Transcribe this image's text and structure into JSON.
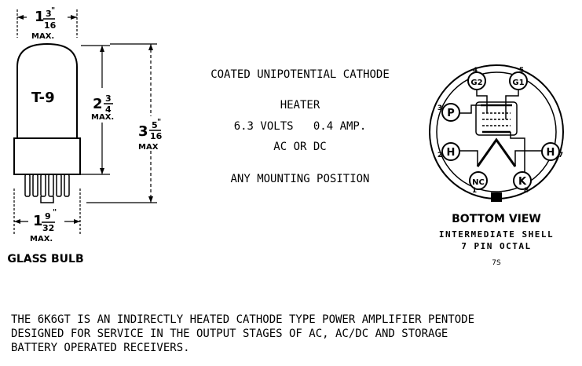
{
  "tube": {
    "bulb_label": "T-9",
    "bulb_type_caption": "GLASS BULB",
    "dims": {
      "top_width": {
        "whole": "1",
        "num": "3",
        "den": "16",
        "suffix": "\"",
        "qualifier": "MAX."
      },
      "bulb_height": {
        "whole": "2",
        "num": "3",
        "den": "4",
        "suffix": "",
        "qualifier": "MAX."
      },
      "overall_height": {
        "whole": "3",
        "num": "5",
        "den": "16",
        "suffix": "\"",
        "qualifier": "MAX"
      },
      "base_width": {
        "whole": "1",
        "num": "9",
        "den": "32",
        "suffix": "\"",
        "qualifier": "MAX."
      }
    }
  },
  "specs": {
    "cathode": "COATED UNIPOTENTIAL CATHODE",
    "heater_title": "HEATER",
    "heater_rating": "6.3 VOLTS   0.4 AMP.",
    "heater_supply": "AC OR DC",
    "mounting": "ANY MOUNTING POSITION"
  },
  "basing": {
    "view_title": "BOTTOM VIEW",
    "shell": "INTERMEDIATE SHELL",
    "pins_desc": "7 PIN OCTAL",
    "code": "7S",
    "pins": [
      {
        "num": "4",
        "label": "G2"
      },
      {
        "num": "5",
        "label": "G1"
      },
      {
        "num": "3",
        "label": "P"
      },
      {
        "num": "2",
        "label": "H"
      },
      {
        "num": "7",
        "label": "H"
      },
      {
        "num": "1",
        "label": "NC"
      },
      {
        "num": "8",
        "label": "K"
      }
    ]
  },
  "description": {
    "line1": "THE 6K6GT IS AN INDIRECTLY HEATED CATHODE TYPE POWER AMPLIFIER PENTODE",
    "line2": "DESIGNED FOR SERVICE IN THE OUTPUT STAGES OF AC, AC/DC AND STORAGE",
    "line3": "BATTERY OPERATED RECEIVERS."
  }
}
